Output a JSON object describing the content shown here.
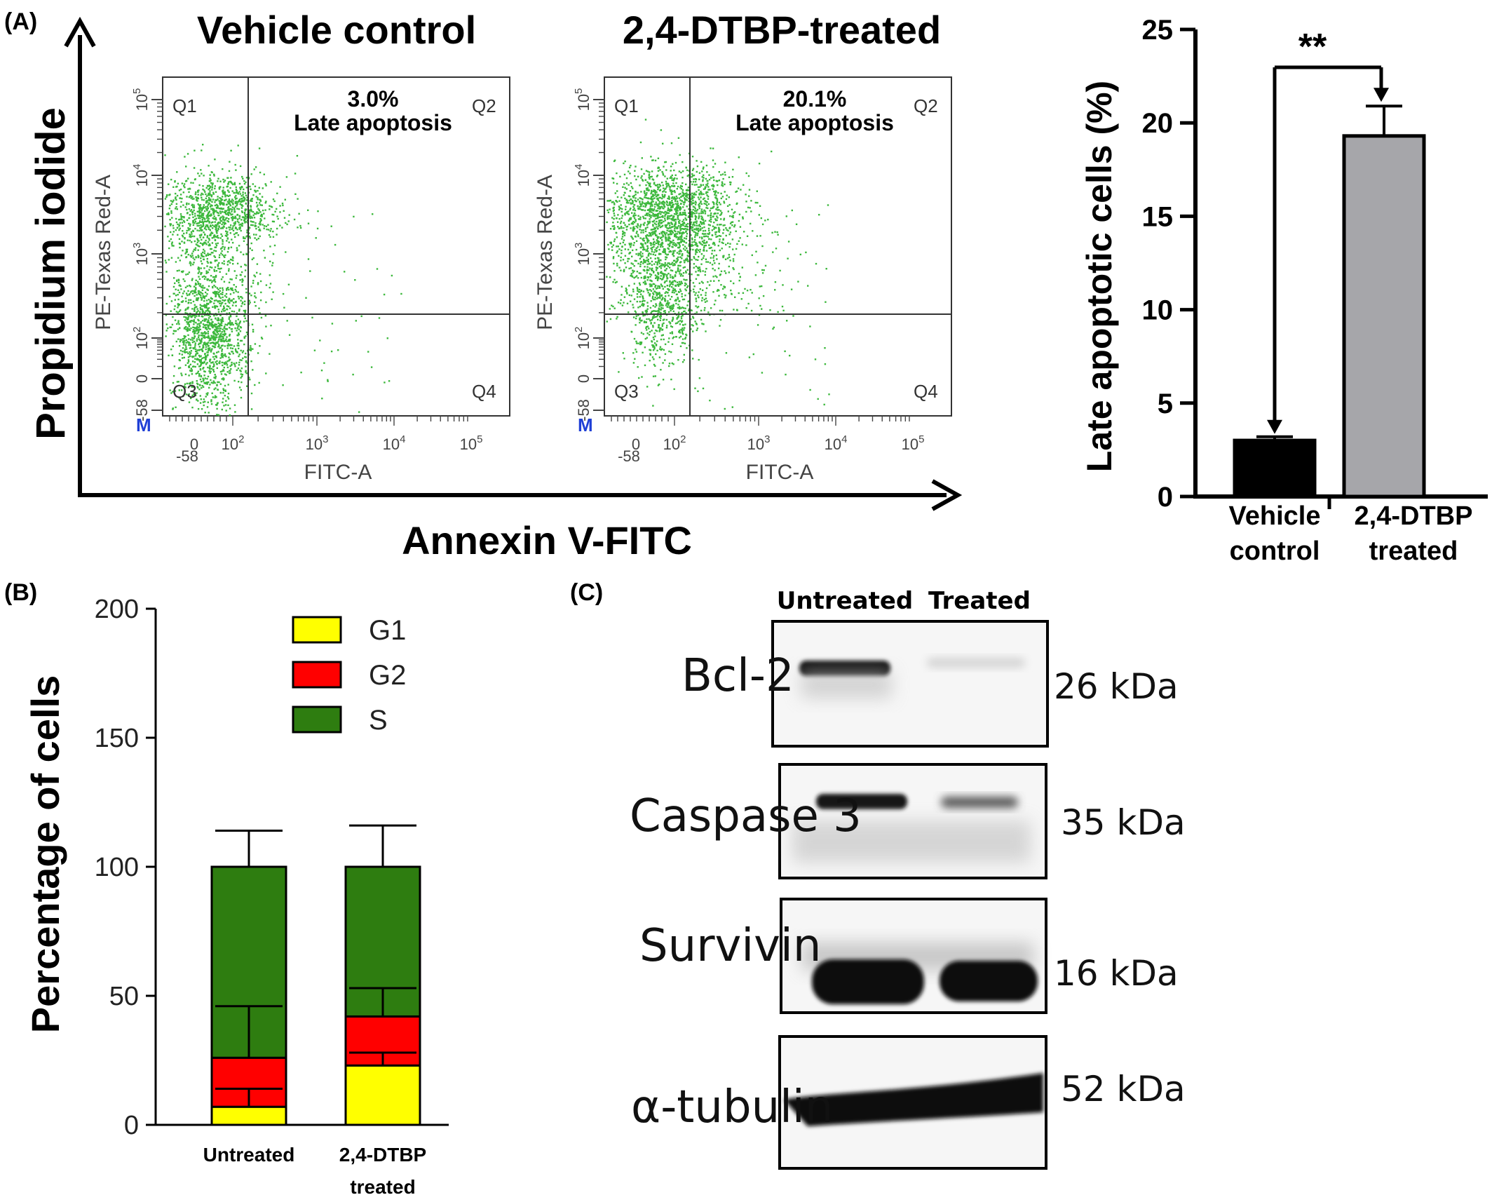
{
  "panel_labels": {
    "a": "(A)",
    "b": "(B)",
    "c": "(C)"
  },
  "colors": {
    "dot": "#3cb83c",
    "bar_vehicle": "#000000",
    "bar_treated": "#a6a6aa",
    "g1": "#ffff00",
    "g2": "#ff0000",
    "s": "#2e7d10"
  },
  "flow": {
    "y_title": "Propidium iodide",
    "x_title": "Annexin V-FITC",
    "axis_y_label": "PE-Texas Red-A",
    "axis_x_label": "FITC-A",
    "gate_marker": "M",
    "y_ticks": [
      "10^5",
      "10^4",
      "10^3",
      "10^2",
      "0",
      "-58"
    ],
    "x_ticks": [
      "-58",
      "0",
      "10^2",
      "10^3",
      "10^4",
      "10^5"
    ],
    "plots": [
      {
        "title": "Vehicle control",
        "percent": "3.0%",
        "region_label": "Late apoptosis",
        "quadrants": [
          "Q1",
          "Q2",
          "Q3",
          "Q4"
        ]
      },
      {
        "title": "2,4-DTBP-treated",
        "percent": "20.1%",
        "region_label": "Late apoptosis",
        "quadrants": [
          "Q1",
          "Q2",
          "Q3",
          "Q4"
        ]
      }
    ]
  },
  "chart_data": [
    {
      "type": "bar",
      "ylabel": "Late apoptotic cells (%)",
      "categories": [
        [
          "Vehicle",
          "control"
        ],
        [
          "2,4-DTBP",
          "treated"
        ]
      ],
      "values": [
        3.0,
        19.3
      ],
      "errors": [
        0.2,
        1.6
      ],
      "ylim": [
        0,
        25
      ],
      "yticks": [
        0,
        5,
        10,
        15,
        20,
        25
      ],
      "significance": "**"
    },
    {
      "type": "bar",
      "stacked": true,
      "ylabel": "Percentage of cells",
      "categories": [
        [
          "Untreated"
        ],
        [
          "2,4-DTBP",
          "treated"
        ]
      ],
      "ylim": [
        0,
        200
      ],
      "yticks": [
        0,
        50,
        100,
        150,
        200
      ],
      "series": [
        {
          "name": "G1",
          "values": [
            7,
            23
          ],
          "errors": [
            7,
            5
          ]
        },
        {
          "name": "G2",
          "values": [
            19,
            19
          ],
          "errors": [
            20,
            11
          ]
        },
        {
          "name": "S",
          "values": [
            74,
            58
          ],
          "errors": [
            14,
            16
          ]
        }
      ]
    }
  ],
  "blot": {
    "lanes": [
      "Untreated",
      "Treated"
    ],
    "rows": [
      {
        "protein": "Bcl-2",
        "size": "26 kDa"
      },
      {
        "protein": "Caspase 3",
        "size": "35 kDa"
      },
      {
        "protein": "Survivin",
        "size": "16 kDa"
      },
      {
        "protein": "α-tubulin",
        "size": "52 kDa"
      }
    ]
  }
}
